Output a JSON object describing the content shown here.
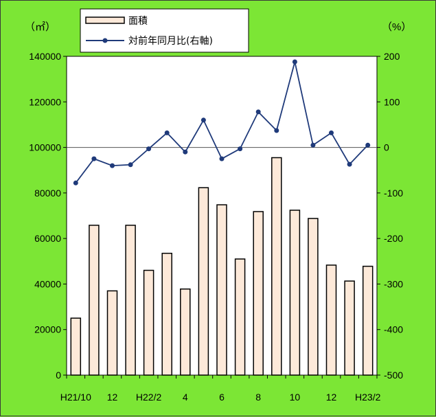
{
  "chart_data": {
    "type": "bar",
    "categories": [
      "H21/10",
      "11",
      "12",
      "H22/1",
      "H22/2",
      "3",
      "4",
      "5",
      "6",
      "7",
      "8",
      "9",
      "10",
      "11",
      "12",
      "H23/1",
      "H23/2"
    ],
    "x_tick_labels": [
      "H21/10",
      "",
      "12",
      "",
      "H22/2",
      "",
      "4",
      "",
      "6",
      "",
      "8",
      "",
      "10",
      "",
      "12",
      "",
      "H23/2"
    ],
    "series": [
      {
        "name": "面積",
        "type": "bar",
        "axis": "left",
        "color": "#fde9d9",
        "values": [
          25000,
          65800,
          37000,
          65800,
          46000,
          53500,
          37800,
          82300,
          74800,
          51000,
          71800,
          95500,
          72400,
          68800,
          48300,
          41300,
          47800
        ]
      },
      {
        "name": "対前年同月比(右軸)",
        "type": "line",
        "axis": "right",
        "color": "#1f3a7a",
        "values": [
          -78,
          -25,
          -40,
          -38,
          -3,
          32,
          -10,
          60,
          -25,
          -3,
          78,
          37,
          188,
          5,
          32,
          -37,
          5
        ]
      }
    ],
    "left_unit": "（㎡）",
    "right_unit": "（%）",
    "ylim_left": [
      0,
      140000
    ],
    "ylim_right": [
      -500,
      200
    ],
    "yticks_left": [
      "0",
      "20000",
      "40000",
      "60000",
      "80000",
      "100000",
      "120000",
      "140000"
    ],
    "yticks_right": [
      "-500",
      "-400",
      "-300",
      "-200",
      "-100",
      "0",
      "100",
      "200"
    ],
    "zero_line_right": 0,
    "legend_position": "top-left"
  },
  "colors": {
    "background": "#7ce635",
    "plot_background": "#ffffff",
    "bar_fill": "#fde9d9",
    "line": "#1f3a7a"
  }
}
